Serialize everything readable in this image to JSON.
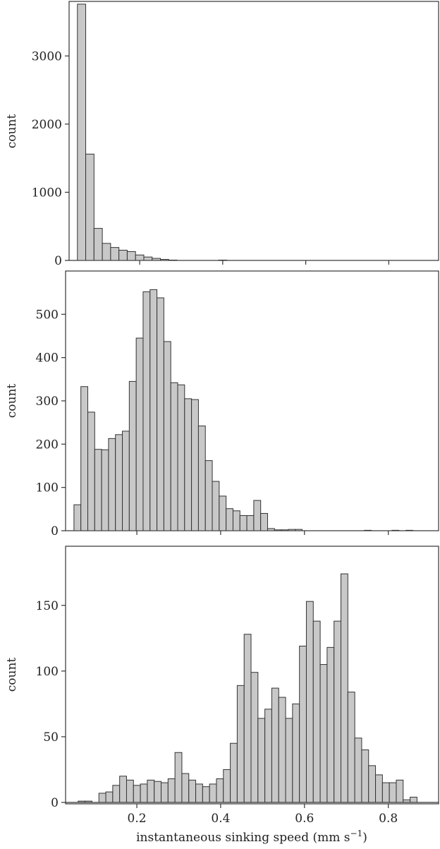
{
  "xlabel_main": "instantaneous sinking speed (mm s",
  "xlabel_sup": "−1",
  "xlabel_close": ")",
  "chart_data": [
    {
      "type": "bar",
      "title": "",
      "xlabel": "",
      "ylabel": "count",
      "bin_start": 0.05,
      "bin_width": 0.02,
      "xlim": [
        0.03,
        0.92
      ],
      "ylim": [
        0,
        3800
      ],
      "xticks": [
        0.2,
        0.4,
        0.6,
        0.8
      ],
      "xticklabels_shown": false,
      "yticks": [
        0,
        1000,
        2000,
        3000
      ],
      "values": [
        3760,
        1560,
        470,
        250,
        190,
        150,
        130,
        80,
        50,
        30,
        15,
        5,
        0,
        0,
        0,
        0,
        0,
        5
      ]
    },
    {
      "type": "bar",
      "title": "",
      "xlabel": "",
      "ylabel": "count",
      "bin_start": 0.05,
      "bin_width": 0.0165,
      "xlim": [
        0.03,
        0.92
      ],
      "ylim": [
        0,
        600
      ],
      "xticks": [
        0.2,
        0.4,
        0.6,
        0.8
      ],
      "xticklabels_shown": false,
      "yticks": [
        0,
        100,
        200,
        300,
        400,
        500
      ],
      "values": [
        60,
        333,
        274,
        188,
        187,
        213,
        222,
        230,
        345,
        445,
        552,
        557,
        538,
        437,
        342,
        337,
        305,
        303,
        242,
        162,
        114,
        80,
        51,
        46,
        35,
        35,
        70,
        40,
        5,
        2,
        2,
        3,
        3,
        0,
        0,
        0,
        0,
        0,
        0,
        0,
        0,
        0,
        1,
        0,
        0,
        0,
        1,
        0,
        1
      ]
    },
    {
      "type": "bar",
      "title": "",
      "xlabel": "instantaneous sinking speed (mm s−1)",
      "ylabel": "count",
      "bin_start": 0.06,
      "bin_width": 0.0165,
      "xlim": [
        0.03,
        0.92
      ],
      "ylim": [
        0,
        195
      ],
      "xticks": [
        0.2,
        0.4,
        0.6,
        0.8
      ],
      "xticklabels": [
        "0.2",
        "0.4",
        "0.6",
        "0.8"
      ],
      "xticklabels_shown": true,
      "yticks": [
        0,
        50,
        100,
        150
      ],
      "values": [
        1,
        1,
        0,
        7,
        8,
        13,
        20,
        17,
        13,
        14,
        17,
        16,
        15,
        18,
        38,
        22,
        17,
        14,
        12,
        14,
        18,
        25,
        45,
        89,
        128,
        99,
        64,
        71,
        87,
        80,
        64,
        75,
        119,
        153,
        138,
        105,
        118,
        138,
        174,
        84,
        49,
        40,
        28,
        21,
        15,
        15,
        17,
        2,
        4
      ]
    }
  ]
}
